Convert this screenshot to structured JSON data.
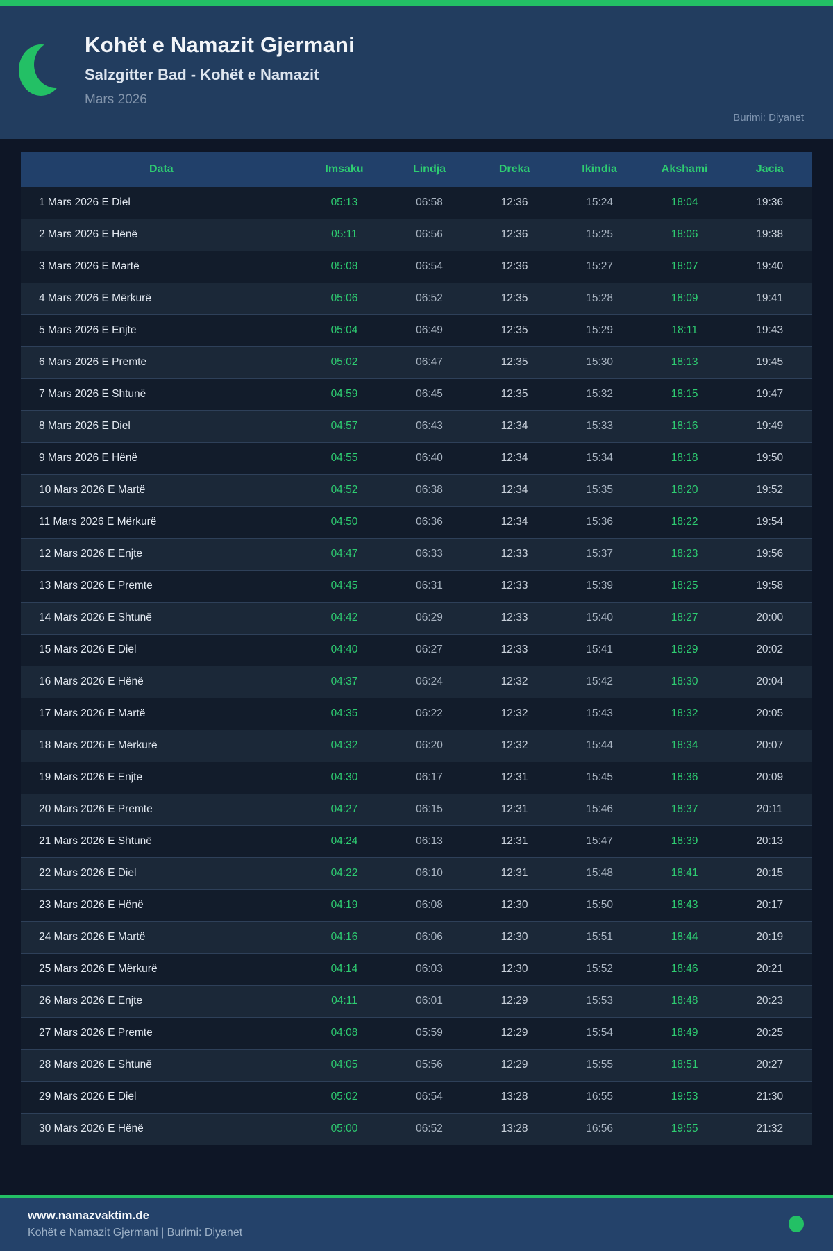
{
  "header": {
    "title": "Kohët e Namazit Gjermani",
    "subtitle": "Salzgitter Bad - Kohët e Namazit",
    "month": "Mars 2026",
    "source": "Burimi: Diyanet"
  },
  "table": {
    "columns": [
      "Data",
      "Imsaku",
      "Lindja",
      "Dreka",
      "Ikindia",
      "Akshami",
      "Jacia"
    ],
    "rows": [
      [
        "1 Mars 2026 E Diel",
        "05:13",
        "06:58",
        "12:36",
        "15:24",
        "18:04",
        "19:36"
      ],
      [
        "2 Mars 2026 E Hënë",
        "05:11",
        "06:56",
        "12:36",
        "15:25",
        "18:06",
        "19:38"
      ],
      [
        "3 Mars 2026 E Martë",
        "05:08",
        "06:54",
        "12:36",
        "15:27",
        "18:07",
        "19:40"
      ],
      [
        "4 Mars 2026 E Mërkurë",
        "05:06",
        "06:52",
        "12:35",
        "15:28",
        "18:09",
        "19:41"
      ],
      [
        "5 Mars 2026 E Enjte",
        "05:04",
        "06:49",
        "12:35",
        "15:29",
        "18:11",
        "19:43"
      ],
      [
        "6 Mars 2026 E Premte",
        "05:02",
        "06:47",
        "12:35",
        "15:30",
        "18:13",
        "19:45"
      ],
      [
        "7 Mars 2026 E Shtunë",
        "04:59",
        "06:45",
        "12:35",
        "15:32",
        "18:15",
        "19:47"
      ],
      [
        "8 Mars 2026 E Diel",
        "04:57",
        "06:43",
        "12:34",
        "15:33",
        "18:16",
        "19:49"
      ],
      [
        "9 Mars 2026 E Hënë",
        "04:55",
        "06:40",
        "12:34",
        "15:34",
        "18:18",
        "19:50"
      ],
      [
        "10 Mars 2026 E Martë",
        "04:52",
        "06:38",
        "12:34",
        "15:35",
        "18:20",
        "19:52"
      ],
      [
        "11 Mars 2026 E Mërkurë",
        "04:50",
        "06:36",
        "12:34",
        "15:36",
        "18:22",
        "19:54"
      ],
      [
        "12 Mars 2026 E Enjte",
        "04:47",
        "06:33",
        "12:33",
        "15:37",
        "18:23",
        "19:56"
      ],
      [
        "13 Mars 2026 E Premte",
        "04:45",
        "06:31",
        "12:33",
        "15:39",
        "18:25",
        "19:58"
      ],
      [
        "14 Mars 2026 E Shtunë",
        "04:42",
        "06:29",
        "12:33",
        "15:40",
        "18:27",
        "20:00"
      ],
      [
        "15 Mars 2026 E Diel",
        "04:40",
        "06:27",
        "12:33",
        "15:41",
        "18:29",
        "20:02"
      ],
      [
        "16 Mars 2026 E Hënë",
        "04:37",
        "06:24",
        "12:32",
        "15:42",
        "18:30",
        "20:04"
      ],
      [
        "17 Mars 2026 E Martë",
        "04:35",
        "06:22",
        "12:32",
        "15:43",
        "18:32",
        "20:05"
      ],
      [
        "18 Mars 2026 E Mërkurë",
        "04:32",
        "06:20",
        "12:32",
        "15:44",
        "18:34",
        "20:07"
      ],
      [
        "19 Mars 2026 E Enjte",
        "04:30",
        "06:17",
        "12:31",
        "15:45",
        "18:36",
        "20:09"
      ],
      [
        "20 Mars 2026 E Premte",
        "04:27",
        "06:15",
        "12:31",
        "15:46",
        "18:37",
        "20:11"
      ],
      [
        "21 Mars 2026 E Shtunë",
        "04:24",
        "06:13",
        "12:31",
        "15:47",
        "18:39",
        "20:13"
      ],
      [
        "22 Mars 2026 E Diel",
        "04:22",
        "06:10",
        "12:31",
        "15:48",
        "18:41",
        "20:15"
      ],
      [
        "23 Mars 2026 E Hënë",
        "04:19",
        "06:08",
        "12:30",
        "15:50",
        "18:43",
        "20:17"
      ],
      [
        "24 Mars 2026 E Martë",
        "04:16",
        "06:06",
        "12:30",
        "15:51",
        "18:44",
        "20:19"
      ],
      [
        "25 Mars 2026 E Mërkurë",
        "04:14",
        "06:03",
        "12:30",
        "15:52",
        "18:46",
        "20:21"
      ],
      [
        "26 Mars 2026 E Enjte",
        "04:11",
        "06:01",
        "12:29",
        "15:53",
        "18:48",
        "20:23"
      ],
      [
        "27 Mars 2026 E Premte",
        "04:08",
        "05:59",
        "12:29",
        "15:54",
        "18:49",
        "20:25"
      ],
      [
        "28 Mars 2026 E Shtunë",
        "04:05",
        "05:56",
        "12:29",
        "15:55",
        "18:51",
        "20:27"
      ],
      [
        "29 Mars 2026 E Diel",
        "05:02",
        "06:54",
        "13:28",
        "16:55",
        "19:53",
        "21:30"
      ],
      [
        "30 Mars 2026 E Hënë",
        "05:00",
        "06:52",
        "13:28",
        "16:56",
        "19:55",
        "21:32"
      ]
    ]
  },
  "footer": {
    "website": "www.namazvaktim.de",
    "tagline": "Kohët e Namazit Gjermani | Burimi: Diyanet"
  },
  "colors": {
    "accent_green": "#23c065",
    "text_green": "#2ecc71",
    "header_navy": "#223d5f",
    "table_header_navy": "#21406a",
    "page_dark": "#0e1626",
    "row_odd": "#121c2b",
    "row_even": "#1b2838",
    "footer_navy": "#24426a"
  }
}
